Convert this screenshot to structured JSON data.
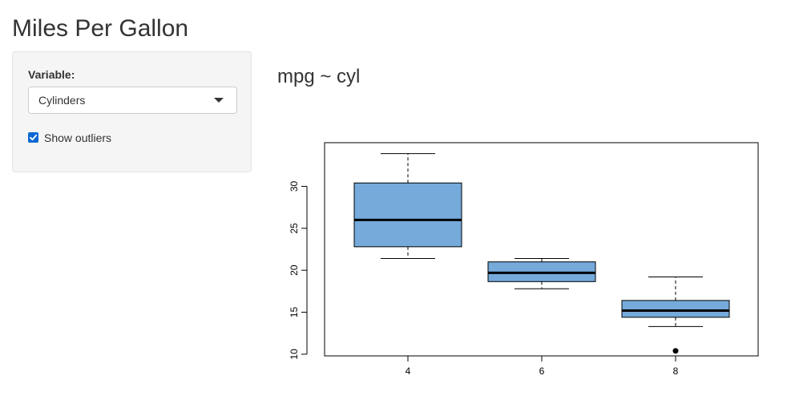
{
  "app": {
    "title": "Miles Per Gallon"
  },
  "sidebar": {
    "variable_label": "Variable:",
    "variable_select": {
      "selected": "Cylinders"
    },
    "show_outliers": {
      "label": "Show outliers",
      "checked": true
    }
  },
  "main": {
    "plot_title": "mpg ~ cyl"
  },
  "colors": {
    "box_fill": "#75aadb",
    "checkbox": "#0b68d3"
  },
  "chart_data": {
    "type": "box",
    "title": "",
    "xlabel": "",
    "ylabel": "",
    "categories": [
      "4",
      "6",
      "8"
    ],
    "boxes": [
      {
        "category": "4",
        "whisker_low": 21.4,
        "q1": 22.8,
        "median": 26.0,
        "q3": 30.4,
        "whisker_high": 33.9,
        "outliers": []
      },
      {
        "category": "6",
        "whisker_low": 17.8,
        "q1": 18.65,
        "median": 19.7,
        "q3": 21.0,
        "whisker_high": 21.4,
        "outliers": []
      },
      {
        "category": "8",
        "whisker_low": 13.3,
        "q1": 14.4,
        "median": 15.2,
        "q3": 16.4,
        "whisker_high": 19.2,
        "outliers": [
          10.4
        ]
      }
    ],
    "y_ticks": [
      10,
      15,
      20,
      25,
      30
    ],
    "ylim": [
      9.8,
      35.2
    ],
    "grid": false
  }
}
